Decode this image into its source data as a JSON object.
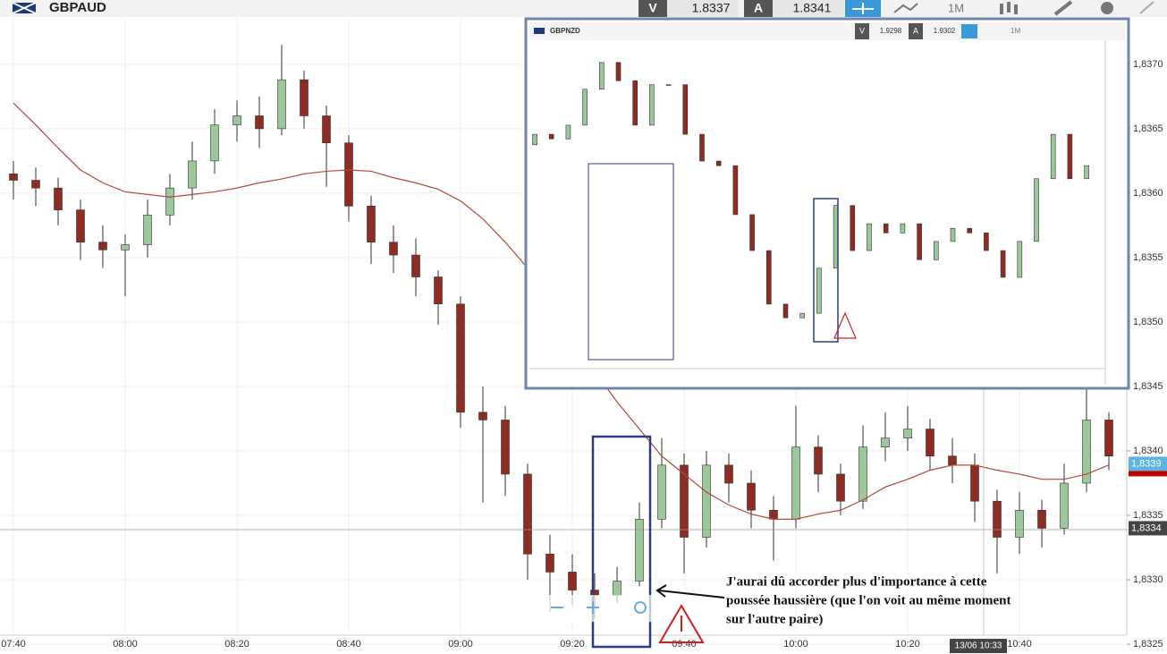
{
  "chart_data": [
    {
      "type": "candlestick",
      "title": "GBPAUD",
      "bid_label": "V",
      "bid": 1.8337,
      "ask_label": "A",
      "ask": 1.8341,
      "timeframe": "1M",
      "categories": [
        "07:40",
        null,
        null,
        null,
        null,
        "08:00",
        null,
        null,
        null,
        null,
        "08:20",
        null,
        null,
        null,
        null,
        "08:40",
        null,
        null,
        null,
        null,
        "09:00",
        null,
        null,
        null,
        null,
        "09:20",
        null,
        null,
        null,
        null,
        "09:40",
        null,
        null,
        null,
        null,
        "10:00",
        null,
        null,
        null,
        null,
        "10:20",
        null,
        null,
        null,
        null,
        "10:40",
        null,
        null,
        null,
        null
      ],
      "open": [
        1.83615,
        1.8361,
        1.83604,
        1.83587,
        1.83562,
        1.83556,
        1.8356,
        1.83583,
        1.83604,
        1.83625,
        1.83653,
        1.8366,
        1.8365,
        1.83688,
        1.8366,
        1.83639,
        1.8359,
        1.83562,
        1.83552,
        1.83535,
        1.83514,
        1.8343,
        1.83424,
        1.83382,
        1.8332,
        1.83306,
        1.83292,
        1.83288,
        1.83299,
        1.83347,
        1.83389,
        1.83333,
        1.83389,
        1.83375,
        1.83354,
        1.83347,
        1.83403,
        1.83382,
        1.83361,
        1.83403,
        1.8341,
        1.83417,
        1.83396,
        1.83389,
        1.83361,
        1.83333,
        1.83354,
        1.8334,
        1.83375,
        1.83424
      ],
      "high": [
        1.83625,
        1.8362,
        1.83612,
        1.83595,
        1.83575,
        1.83568,
        1.83595,
        1.83615,
        1.8364,
        1.83665,
        1.83672,
        1.83675,
        1.83715,
        1.83695,
        1.83668,
        1.83645,
        1.83598,
        1.83575,
        1.83565,
        1.8354,
        1.8352,
        1.8345,
        1.83435,
        1.8339,
        1.83335,
        1.8332,
        1.83305,
        1.8331,
        1.8336,
        1.8341,
        1.83398,
        1.834,
        1.83398,
        1.83385,
        1.83365,
        1.83435,
        1.83412,
        1.8339,
        1.8342,
        1.8343,
        1.83435,
        1.83425,
        1.8341,
        1.83398,
        1.8337,
        1.83368,
        1.83362,
        1.8339,
        1.8345,
        1.8343
      ],
      "low": [
        1.83595,
        1.8359,
        1.83575,
        1.83548,
        1.83542,
        1.8352,
        1.8355,
        1.83575,
        1.83595,
        1.83615,
        1.8364,
        1.83635,
        1.83645,
        1.8365,
        1.83605,
        1.83578,
        1.83545,
        1.83538,
        1.8352,
        1.83498,
        1.83418,
        1.8336,
        1.83365,
        1.833,
        1.83275,
        1.8328,
        1.8327,
        1.83282,
        1.83295,
        1.8334,
        1.83305,
        1.83325,
        1.8336,
        1.8334,
        1.83315,
        1.8334,
        1.83368,
        1.8335,
        1.83355,
        1.83392,
        1.834,
        1.83385,
        1.83375,
        1.83345,
        1.83305,
        1.8332,
        1.83325,
        1.83335,
        1.83368,
        1.83385
      ],
      "close": [
        1.8361,
        1.83604,
        1.83587,
        1.83562,
        1.83556,
        1.8356,
        1.83583,
        1.83604,
        1.83625,
        1.83653,
        1.8366,
        1.8365,
        1.83688,
        1.8366,
        1.83639,
        1.8359,
        1.83562,
        1.83552,
        1.83535,
        1.83514,
        1.8343,
        1.83424,
        1.83382,
        1.8332,
        1.83306,
        1.83292,
        1.83288,
        1.83299,
        1.83347,
        1.83389,
        1.83333,
        1.83389,
        1.83375,
        1.83354,
        1.83347,
        1.83403,
        1.83382,
        1.83361,
        1.83403,
        1.8341,
        1.83417,
        1.83396,
        1.83389,
        1.83361,
        1.83333,
        1.83354,
        1.8334,
        1.83375,
        1.83424,
        1.83396
      ],
      "ma": [
        1.8367,
        1.83653,
        1.83635,
        1.83618,
        1.83608,
        1.83601,
        1.83599,
        1.83597,
        1.83599,
        1.83601,
        1.83604,
        1.83608,
        1.83611,
        1.83615,
        1.83617,
        1.83618,
        1.83617,
        1.83612,
        1.83608,
        1.83603,
        1.83594,
        1.8358,
        1.83562,
        1.83542,
        1.83514,
        1.83486,
        1.83462,
        1.83438,
        1.83417,
        1.83396,
        1.83382,
        1.83368,
        1.83358,
        1.83351,
        1.83347,
        1.83347,
        1.83351,
        1.83354,
        1.83362,
        1.83372,
        1.83378,
        1.83385,
        1.83389,
        1.83389,
        1.83385,
        1.83382,
        1.83378,
        1.83378,
        1.83382,
        1.83389
      ],
      "up_color": "#9cc79a",
      "down_color": "#8e2b22",
      "ma_color": "#b8463c",
      "ylim": [
        1.83257,
        1.83736
      ],
      "yticks": [
        {
          "value": 1.8325,
          "label": "1,8325"
        },
        {
          "value": 1.833,
          "label": "1,8330"
        },
        {
          "value": 1.8335,
          "label": "1,8335"
        },
        {
          "value": 1.834,
          "label": "1,8340"
        },
        {
          "value": 1.8345,
          "label": "1,8345"
        },
        {
          "value": 1.835,
          "label": "1,8350"
        },
        {
          "value": 1.8355,
          "label": "1,8355"
        },
        {
          "value": 1.836,
          "label": "1,8360"
        },
        {
          "value": 1.8365,
          "label": "1,8365"
        },
        {
          "value": 1.837,
          "label": "1,8370"
        }
      ],
      "grid": true,
      "last_price": {
        "value": 1.8339,
        "label": "1,8339"
      },
      "crosshair_price": {
        "value": 1.8334,
        "label": "1,8334"
      },
      "crosshair_time": "13/06 10:33",
      "annotation": [
        "J'aurai dû accorder plus d'importance à cette",
        "poussée haussière (que l'on voit au même moment",
        "sur l'autre paire)"
      ]
    },
    {
      "type": "candlestick",
      "title": "GBPNZD",
      "bid_label": "V",
      "bid": 1.9298,
      "ask_label": "A",
      "ask": 1.9302,
      "timeframe": "1M",
      "open": [
        1.9304,
        1.93056,
        1.93049,
        1.9307,
        1.93125,
        1.93166,
        1.93138,
        1.9307,
        1.93132,
        1.93132,
        1.93056,
        1.93015,
        1.93008,
        1.92933,
        1.92878,
        1.92796,
        1.92775,
        1.92782,
        1.92851,
        1.92947,
        1.92878,
        1.92919,
        1.92905,
        1.92919,
        1.92864,
        1.92892,
        1.92912,
        1.92905,
        1.92878,
        1.92837,
        1.92892,
        1.92988,
        1.93056,
        1.92988
      ],
      "close": [
        1.93056,
        1.93049,
        1.9307,
        1.93125,
        1.93166,
        1.93138,
        1.9307,
        1.93132,
        1.93132,
        1.93056,
        1.93015,
        1.93008,
        1.92933,
        1.92878,
        1.92796,
        1.92775,
        1.92782,
        1.92851,
        1.92947,
        1.92878,
        1.92919,
        1.92905,
        1.92919,
        1.92864,
        1.92892,
        1.92912,
        1.92905,
        1.92878,
        1.92837,
        1.92892,
        1.92988,
        1.93056,
        1.92988,
        1.93008
      ],
      "up_color": "#9cc79a",
      "down_color": "#8e2b22",
      "ylim": [
        1.927,
        1.932
      ]
    }
  ]
}
